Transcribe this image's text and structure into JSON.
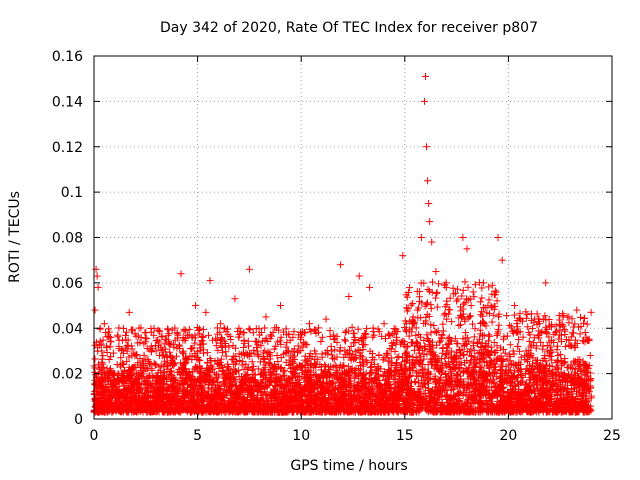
{
  "chart_data": {
    "type": "scatter",
    "title": "Day 342 of 2020, Rate Of TEC Index for receiver p807",
    "xlabel": "GPS time / hours",
    "ylabel": "ROTI / TECUs",
    "xlim": [
      0,
      25
    ],
    "ylim": [
      0,
      0.16
    ],
    "x_ticks": [
      0,
      5,
      10,
      15,
      20,
      25
    ],
    "x_tick_labels": [
      "0",
      "5",
      "10",
      "15",
      "20",
      "25"
    ],
    "y_ticks": [
      0,
      0.02,
      0.04,
      0.06,
      0.08,
      0.1,
      0.12,
      0.14,
      0.16
    ],
    "y_tick_labels": [
      "0",
      "0.02",
      "0.04",
      "0.06",
      "0.08",
      "0.1",
      "0.12",
      "0.14",
      "0.16"
    ],
    "grid": true,
    "marker": "+",
    "color": "#ff0000",
    "series": [
      {
        "name": "p807",
        "x": [
          0.05,
          0.1,
          0.15,
          0.2,
          0.3,
          0.5,
          0.8,
          1.2,
          1.7,
          2.5,
          3.0,
          3.6,
          4.2,
          4.9,
          5.4,
          5.6,
          6.1,
          6.8,
          7.5,
          8.3,
          9.0,
          9.6,
          10.4,
          11.2,
          11.9,
          12.3,
          12.8,
          13.3,
          14.0,
          14.6,
          14.9,
          15.4,
          15.8,
          15.95,
          16.0,
          16.05,
          16.1,
          16.15,
          16.2,
          16.3,
          16.5,
          17.0,
          17.5,
          17.8,
          18.0,
          18.3,
          18.8,
          19.2,
          19.5,
          19.7,
          20.3,
          20.9,
          21.5,
          21.8,
          22.3,
          22.8,
          23.3,
          23.7,
          23.95
        ],
        "y": [
          0.048,
          0.066,
          0.063,
          0.058,
          0.04,
          0.042,
          0.036,
          0.032,
          0.047,
          0.038,
          0.03,
          0.034,
          0.064,
          0.05,
          0.047,
          0.061,
          0.042,
          0.053,
          0.066,
          0.045,
          0.05,
          0.036,
          0.042,
          0.044,
          0.068,
          0.054,
          0.063,
          0.058,
          0.042,
          0.036,
          0.072,
          0.045,
          0.08,
          0.14,
          0.151,
          0.12,
          0.105,
          0.095,
          0.087,
          0.078,
          0.065,
          0.06,
          0.052,
          0.08,
          0.075,
          0.056,
          0.06,
          0.055,
          0.08,
          0.07,
          0.05,
          0.046,
          0.042,
          0.06,
          0.041,
          0.035,
          0.048,
          0.034,
          0.028
        ]
      }
    ],
    "dense_band": {
      "x_range": [
        0,
        24
      ],
      "baseline_min": 0.003,
      "baseline_typical_max": 0.03,
      "segments": [
        {
          "x": [
            0,
            15
          ],
          "max": 0.03
        },
        {
          "x": [
            15,
            19.5
          ],
          "max": 0.045
        },
        {
          "x": [
            19.5,
            24
          ],
          "max": 0.035
        }
      ]
    }
  }
}
